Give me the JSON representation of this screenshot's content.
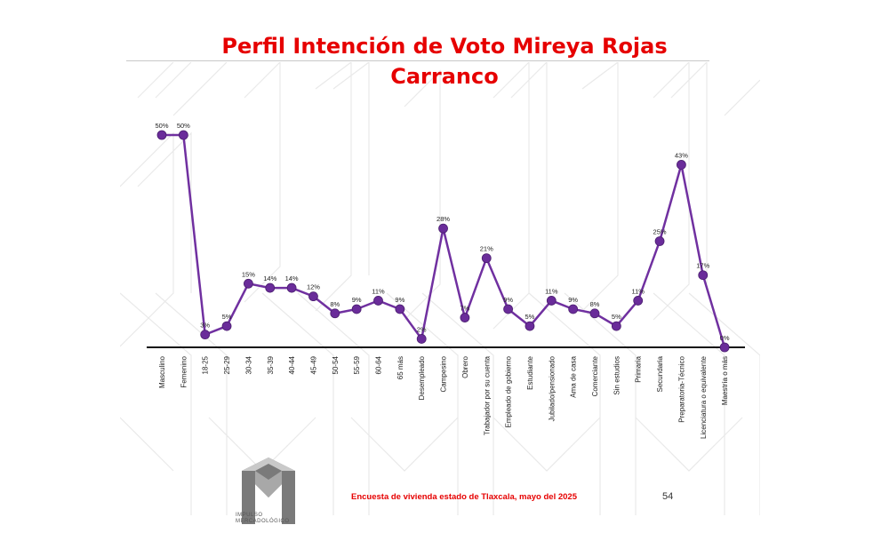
{
  "title_line1": "Perfil Intención de Voto Mireya Rojas",
  "title_line2": "Carranco",
  "footer_text": "Encuesta de vivienda estado de Tlaxcala, mayo   del 2025",
  "page_number": "54",
  "logo_line1": "IMPULSO",
  "logo_line2": "MERCADOLÓGICO",
  "colors": {
    "title": "#e60000",
    "line": "#7030a0",
    "marker": "#6a2c9a"
  },
  "chart_data": {
    "type": "line",
    "categories": [
      "Masculino",
      "Femenino",
      "18-25",
      "25-29",
      "30-34",
      "35-39",
      "40-44",
      "45-49",
      "50-54",
      "55-59",
      "60-64",
      "65 más",
      "Desempleado",
      "Campesino",
      "Obrero",
      "Trabajador por su cuenta",
      "Empleado de gobierno",
      "Estudiante",
      "Jubilado/pensionado",
      "Ama de casa",
      "Comerciante",
      "Sin estudios",
      "Primaria",
      "Secundaria",
      "Preparatoria-Técnico",
      "Licenciatura o equivalente",
      "Maestría o más"
    ],
    "values": [
      50,
      50,
      3,
      5,
      15,
      14,
      14,
      12,
      8,
      9,
      11,
      9,
      2,
      28,
      7,
      21,
      9,
      5,
      11,
      9,
      8,
      5,
      11,
      25,
      43,
      17,
      0
    ],
    "value_labels": [
      "50%",
      "50%",
      "3%",
      "5%",
      "15%",
      "14%",
      "14%",
      "12%",
      "8%",
      "9%",
      "11%",
      "9%",
      "2%",
      "28%",
      "7%",
      "21%",
      "9%",
      "5%",
      "11%",
      "9%",
      "8%",
      "5%",
      "11%",
      "25%",
      "43%",
      "17%",
      "0%"
    ],
    "ylim": [
      0,
      50
    ],
    "grid": false,
    "title": "Perfil Intención de Voto Mireya Rojas Carranco",
    "xlabel": "",
    "ylabel": ""
  }
}
